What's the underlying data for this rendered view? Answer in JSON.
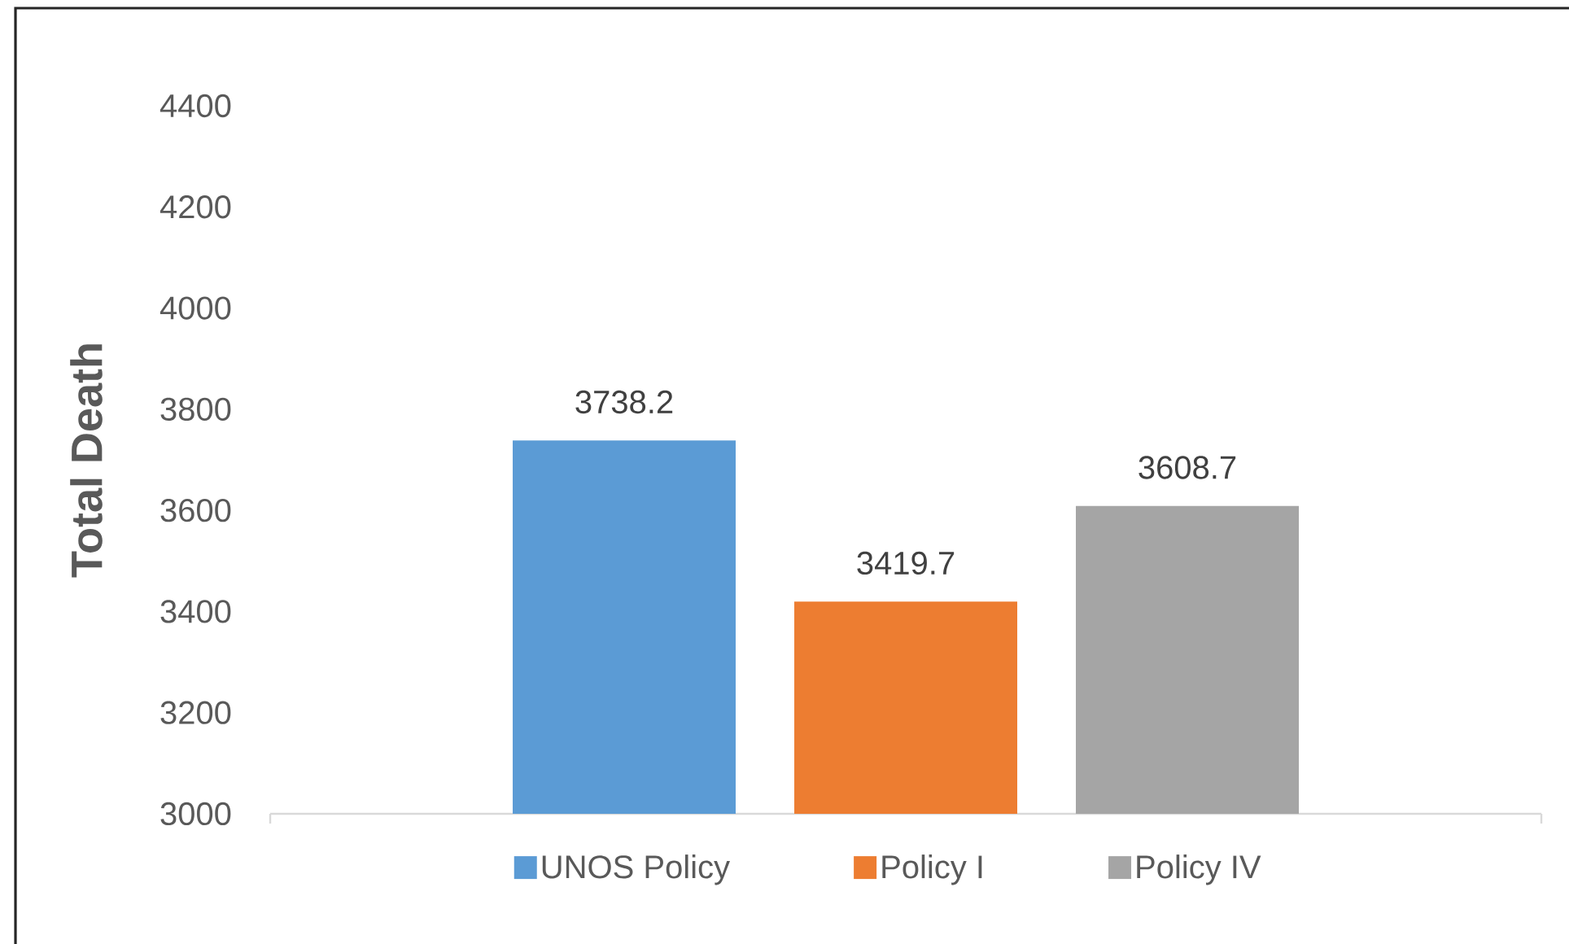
{
  "chart_data": {
    "type": "bar",
    "ylabel": "Total Death",
    "categories": [
      null
    ],
    "series": [
      {
        "name": "UNOS Policy",
        "color": "#5b9bd5",
        "values": [
          3738.2
        ]
      },
      {
        "name": "Policy I",
        "color": "#ed7d31",
        "values": [
          3419.7
        ]
      },
      {
        "name": "Policy IV",
        "color": "#a5a5a5",
        "values": [
          3608.7
        ]
      }
    ],
    "ylim": [
      3000,
      4400
    ],
    "yticks": [
      3000,
      3200,
      3400,
      3600,
      3800,
      4000,
      4200,
      4400
    ],
    "data_labels": true,
    "legend": "bottom"
  }
}
